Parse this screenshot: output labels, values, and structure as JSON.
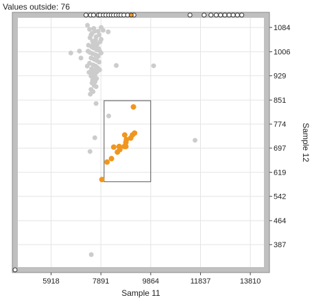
{
  "outside_note": {
    "label": "Values outside:",
    "count": 76
  },
  "chart_data": {
    "type": "scatter",
    "xlabel": "Sample 11",
    "ylabel": "Sample 12",
    "xlim": [
      4600,
      14350
    ],
    "ylim": [
      315,
      1115
    ],
    "x_ticks": [
      5918,
      7891,
      9864,
      11837,
      13810
    ],
    "y_ticks": [
      387,
      464,
      542,
      619,
      697,
      774,
      851,
      929,
      1006,
      1084
    ],
    "grid": true,
    "y_axis_side": "right",
    "colors": {
      "selected": "#f0961e",
      "unselected": "#cccccc",
      "outside": "#333333",
      "frame": "#c0c0c0"
    },
    "selection_box": {
      "x": [
        8017,
        9863
      ],
      "y": [
        589,
        849
      ]
    },
    "selected_points": [
      {
        "x": 7930,
        "y": 596
      },
      {
        "x": 8135,
        "y": 652
      },
      {
        "x": 8310,
        "y": 663
      },
      {
        "x": 8400,
        "y": 700
      },
      {
        "x": 8545,
        "y": 684
      },
      {
        "x": 8615,
        "y": 702
      },
      {
        "x": 8640,
        "y": 692
      },
      {
        "x": 8815,
        "y": 702
      },
      {
        "x": 8880,
        "y": 702
      },
      {
        "x": 8835,
        "y": 739
      },
      {
        "x": 8900,
        "y": 724
      },
      {
        "x": 8880,
        "y": 715
      },
      {
        "x": 9070,
        "y": 729
      },
      {
        "x": 9140,
        "y": 739
      },
      {
        "x": 9225,
        "y": 745
      },
      {
        "x": 9180,
        "y": 829
      }
    ],
    "unselected_points": [
      {
        "x": 7360,
        "y": 1091
      },
      {
        "x": 7440,
        "y": 1078
      },
      {
        "x": 7610,
        "y": 1081
      },
      {
        "x": 7780,
        "y": 1072
      },
      {
        "x": 7900,
        "y": 1084
      },
      {
        "x": 7980,
        "y": 1075
      },
      {
        "x": 7540,
        "y": 1065
      },
      {
        "x": 7820,
        "y": 1060
      },
      {
        "x": 7460,
        "y": 1051
      },
      {
        "x": 7700,
        "y": 1054
      },
      {
        "x": 7900,
        "y": 1046
      },
      {
        "x": 7560,
        "y": 1040
      },
      {
        "x": 7640,
        "y": 1036
      },
      {
        "x": 7750,
        "y": 1031
      },
      {
        "x": 7400,
        "y": 1027
      },
      {
        "x": 7520,
        "y": 1022
      },
      {
        "x": 7600,
        "y": 1018
      },
      {
        "x": 7720,
        "y": 1013
      },
      {
        "x": 7840,
        "y": 1009
      },
      {
        "x": 7450,
        "y": 1004
      },
      {
        "x": 7560,
        "y": 1000
      },
      {
        "x": 7680,
        "y": 996
      },
      {
        "x": 7780,
        "y": 991
      },
      {
        "x": 7500,
        "y": 986
      },
      {
        "x": 7620,
        "y": 982
      },
      {
        "x": 7720,
        "y": 978
      },
      {
        "x": 7820,
        "y": 973
      },
      {
        "x": 7440,
        "y": 969
      },
      {
        "x": 7580,
        "y": 964
      },
      {
        "x": 7680,
        "y": 960
      },
      {
        "x": 7760,
        "y": 955
      },
      {
        "x": 7520,
        "y": 951
      },
      {
        "x": 7640,
        "y": 946
      },
      {
        "x": 7740,
        "y": 942
      },
      {
        "x": 7560,
        "y": 937
      },
      {
        "x": 7660,
        "y": 933
      },
      {
        "x": 7500,
        "y": 928
      },
      {
        "x": 7620,
        "y": 924
      },
      {
        "x": 7720,
        "y": 920
      },
      {
        "x": 7560,
        "y": 915
      },
      {
        "x": 7660,
        "y": 910
      },
      {
        "x": 7540,
        "y": 906
      },
      {
        "x": 7620,
        "y": 898
      },
      {
        "x": 7700,
        "y": 894
      },
      {
        "x": 7500,
        "y": 885
      },
      {
        "x": 7580,
        "y": 878
      },
      {
        "x": 7470,
        "y": 870
      },
      {
        "x": 7680,
        "y": 1044
      },
      {
        "x": 7860,
        "y": 1038
      },
      {
        "x": 7380,
        "y": 1008
      },
      {
        "x": 7800,
        "y": 1016
      },
      {
        "x": 7900,
        "y": 1002
      },
      {
        "x": 7350,
        "y": 960
      },
      {
        "x": 7840,
        "y": 948
      },
      {
        "x": 7420,
        "y": 940
      },
      {
        "x": 7500,
        "y": 1060
      },
      {
        "x": 7640,
        "y": 1072
      },
      {
        "x": 7760,
        "y": 993
      },
      {
        "x": 7580,
        "y": 1028
      },
      {
        "x": 7700,
        "y": 1020
      },
      {
        "x": 6700,
        "y": 1002
      },
      {
        "x": 7040,
        "y": 1008
      },
      {
        "x": 7100,
        "y": 986
      },
      {
        "x": 8500,
        "y": 962
      },
      {
        "x": 9980,
        "y": 961
      },
      {
        "x": 8180,
        "y": 1070
      },
      {
        "x": 7700,
        "y": 840
      },
      {
        "x": 8200,
        "y": 800
      },
      {
        "x": 7650,
        "y": 730
      },
      {
        "x": 7460,
        "y": 686
      },
      {
        "x": 11620,
        "y": 722
      },
      {
        "x": 7510,
        "y": 355
      }
    ],
    "outside_markers": {
      "top": [
        7300,
        7480,
        7600,
        7790,
        7860,
        7990,
        8090,
        8200,
        8300,
        8390,
        8500,
        8600,
        8690,
        8800,
        8950,
        9200,
        11420,
        11980,
        12250,
        12460,
        12630,
        12800,
        12970,
        13130,
        13300,
        13470
      ],
      "top_selected": [
        9090
      ],
      "bottom_left": true
    }
  }
}
